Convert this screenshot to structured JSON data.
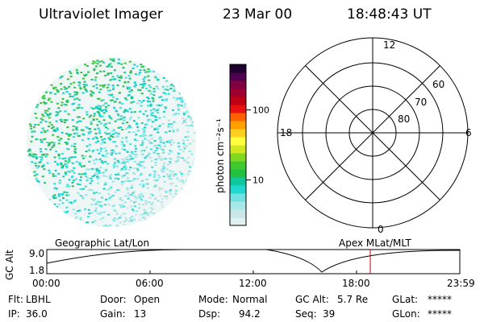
{
  "header": {
    "instrument": "Ultraviolet Imager",
    "date": "23 Mar 00",
    "time": "18:48:43 UT"
  },
  "colorbar": {
    "unit_label": "photon cm⁻²s⁻¹",
    "ticks": [
      {
        "label": "100",
        "value": 100
      },
      {
        "label": "10",
        "value": 10
      }
    ],
    "colors": [
      "#e0f0f0",
      "#c8e8e8",
      "#a8e8e8",
      "#70e0e0",
      "#20d8d0",
      "#10c8a0",
      "#20c040",
      "#40c830",
      "#80d820",
      "#d0e820",
      "#ffff40",
      "#ffd020",
      "#ffa000",
      "#ff6000",
      "#e81010",
      "#c00010",
      "#a00030",
      "#800040",
      "#500050",
      "#200030"
    ]
  },
  "polar_plot": {
    "hour_labels": [
      {
        "label": "12",
        "pos": "top"
      },
      {
        "label": "6",
        "pos": "right"
      },
      {
        "label": "0",
        "pos": "bottom"
      },
      {
        "label": "18",
        "pos": "left"
      }
    ],
    "lat_labels": [
      "60",
      "70",
      "80"
    ]
  },
  "timeline": {
    "y_axis_label": "GC Alt",
    "y_ticks": [
      "9.0",
      "1.8"
    ],
    "left_caption": "Geographic Lat/Lon",
    "right_caption": "Apex MLat/MLT",
    "x_ticks": [
      "00:00",
      "06:00",
      "12:00",
      "18:00",
      "23:59"
    ],
    "current_time_marker": "18:48",
    "marker_color": "#c00000"
  },
  "info": {
    "filter_label": "Flt:",
    "filter_value": "LBHL",
    "ip_label": "IP:",
    "ip_value": "36.0",
    "door_label": "Door:",
    "door_value": "Open",
    "gain_label": "Gain:",
    "gain_value": "13",
    "mode_label": "Mode:",
    "mode_value": "Normal",
    "dsp_label": "Dsp:",
    "dsp_value": "94.2",
    "gcalt_label": "GC Alt:",
    "gcalt_value": "5.7 Re",
    "seq_label": "Seq:",
    "seq_value": "39",
    "glat_label": "GLat:",
    "glat_value": "*****",
    "glon_label": "GLon:",
    "glon_value": "*****"
  }
}
